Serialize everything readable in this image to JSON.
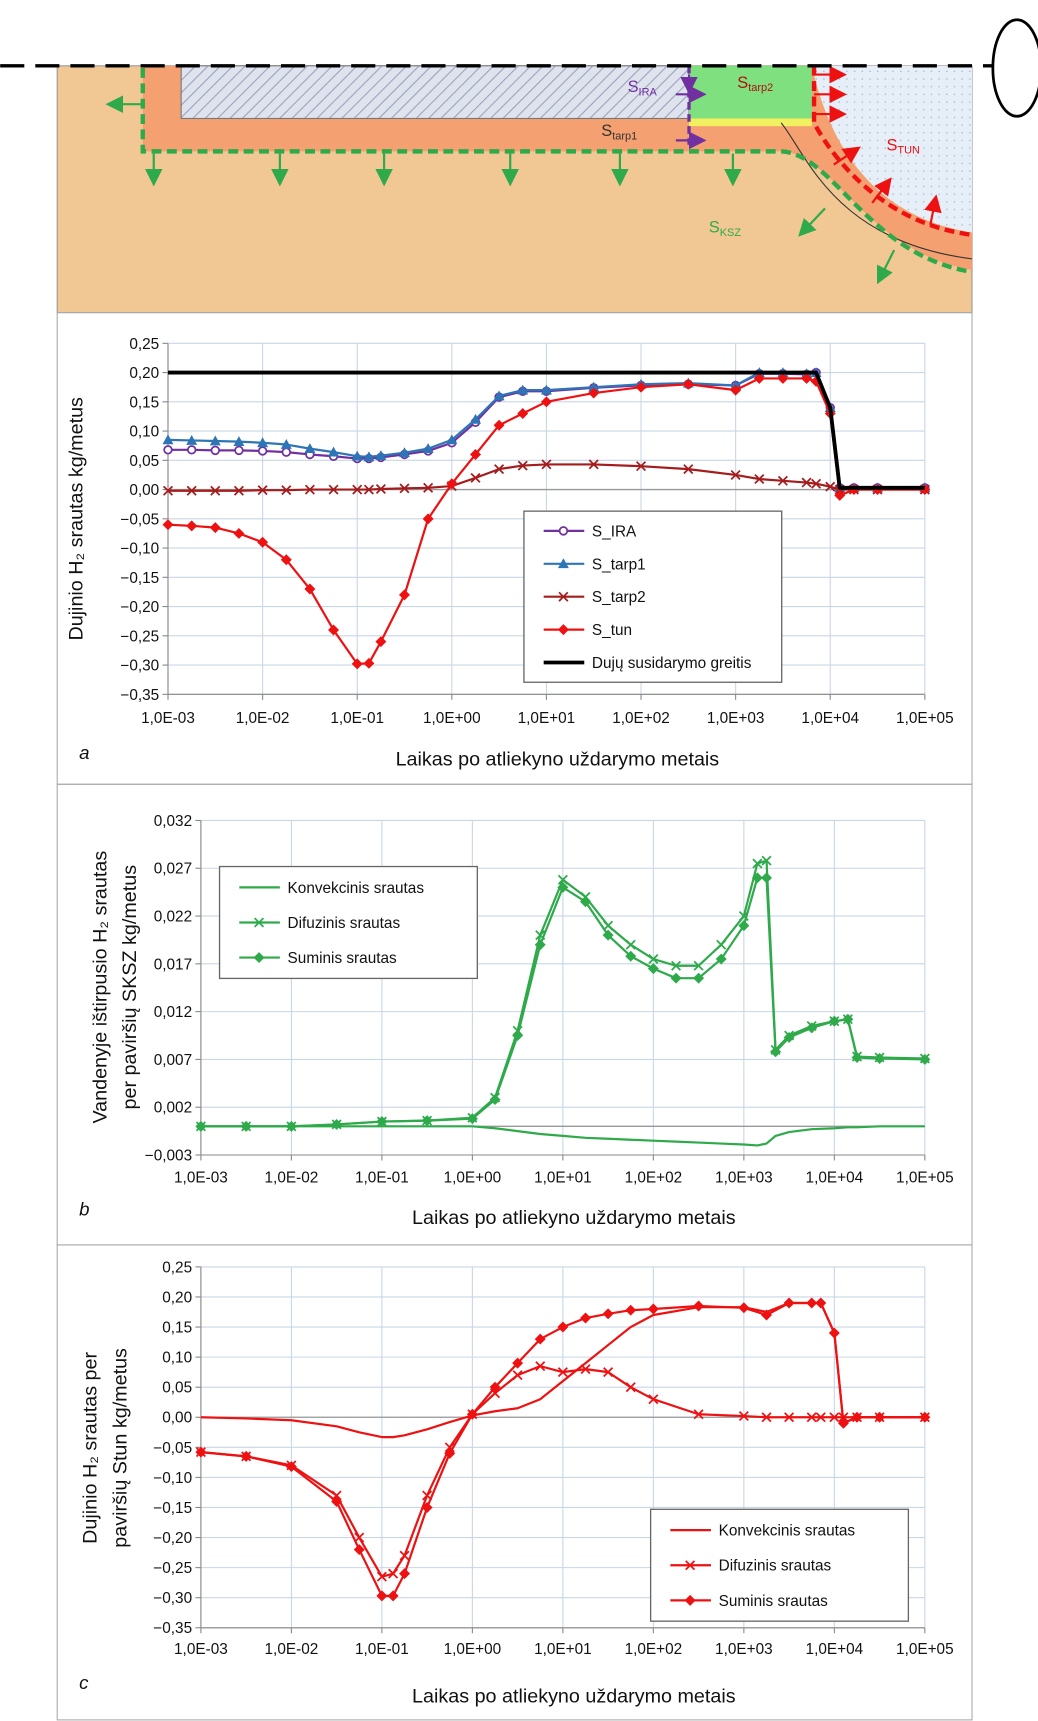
{
  "diagram": {
    "labels": [
      {
        "main": "S",
        "sub": "IRA"
      },
      {
        "main": "S",
        "sub": "tarp2"
      },
      {
        "main": "S",
        "sub": "tarp1"
      },
      {
        "main": "S",
        "sub": "TUN"
      },
      {
        "main": "S",
        "sub": "KSZ"
      }
    ]
  },
  "chart_data": [
    {
      "type": "line",
      "panel": "a",
      "ylabel": [
        "Dujinio H₂ srautas kg/metus"
      ],
      "xlabel": "Laikas po atliekyno uždarymo metais",
      "xscale": "log",
      "grid": true,
      "legend": "lower center",
      "xlim": [
        0.001,
        100000
      ],
      "ylim": [
        -0.35,
        0.25
      ],
      "xticks": [
        {
          "value": 0.001,
          "label": "1,0E-03"
        },
        {
          "value": 0.01,
          "label": "1,0E-02"
        },
        {
          "value": 0.1,
          "label": "1,0E-01"
        },
        {
          "value": 1,
          "label": "1,0E+00"
        },
        {
          "value": 10,
          "label": "1,0E+01"
        },
        {
          "value": 100,
          "label": "1,0E+02"
        },
        {
          "value": 1000,
          "label": "1,0E+03"
        },
        {
          "value": 10000,
          "label": "1,0E+04"
        },
        {
          "value": 100000,
          "label": "1,0E+05"
        }
      ],
      "yticks": [
        {
          "value": 0.25,
          "label": "0,25"
        },
        {
          "value": 0.2,
          "label": "0,20"
        },
        {
          "value": 0.15,
          "label": "0,15"
        },
        {
          "value": 0.1,
          "label": "0,10"
        },
        {
          "value": 0.05,
          "label": "0,05"
        },
        {
          "value": 0,
          "label": "0,00"
        },
        {
          "value": -0.05,
          "label": "−0,05"
        },
        {
          "value": -0.1,
          "label": "−0,10"
        },
        {
          "value": -0.15,
          "label": "−0,15"
        },
        {
          "value": -0.2,
          "label": "−0,20"
        },
        {
          "value": -0.25,
          "label": "−0,25"
        },
        {
          "value": -0.3,
          "label": "−0,30"
        },
        {
          "value": -0.35,
          "label": "−0,35"
        }
      ],
      "x": [
        0.001,
        0.00178,
        0.00316,
        0.00562,
        0.01,
        0.0178,
        0.0316,
        0.0562,
        0.1,
        0.133,
        0.178,
        0.316,
        0.562,
        1,
        1.78,
        3.16,
        5.62,
        10,
        31.6,
        100,
        316,
        1000,
        1780,
        3160,
        5620,
        7080,
        10000,
        12600,
        17800,
        31600,
        100000
      ],
      "series": [
        {
          "name": "S_IRA",
          "color": "#7030a0",
          "marker": "circle",
          "values": [
            0.068,
            0.068,
            0.067,
            0.067,
            0.066,
            0.064,
            0.06,
            0.057,
            0.053,
            0.053,
            0.055,
            0.06,
            0.066,
            0.08,
            0.115,
            0.158,
            0.168,
            0.168,
            0.174,
            0.178,
            0.18,
            0.178,
            0.198,
            0.198,
            0.197,
            0.2,
            0.14,
            0.003,
            0.003,
            0.003,
            0.003
          ]
        },
        {
          "name": "S_tarp1",
          "color": "#2e75b6",
          "marker": "triangle",
          "values": [
            0.085,
            0.084,
            0.083,
            0.082,
            0.08,
            0.077,
            0.07,
            0.064,
            0.057,
            0.056,
            0.058,
            0.063,
            0.07,
            0.085,
            0.12,
            0.16,
            0.17,
            0.17,
            0.175,
            0.18,
            0.182,
            0.178,
            0.2,
            0.2,
            0.198,
            0.2,
            0.14,
            0.003,
            0.003,
            0.003,
            0.003
          ]
        },
        {
          "name": "S_tarp2",
          "color": "#a51c1c",
          "marker": "x",
          "values": [
            -0.002,
            -0.002,
            -0.002,
            -0.002,
            -0.001,
            -0.001,
            0,
            0,
            0,
            0,
            0.001,
            0.002,
            0.003,
            0.006,
            0.02,
            0.035,
            0.041,
            0.043,
            0.043,
            0.04,
            0.035,
            0.025,
            0.018,
            0.015,
            0.012,
            0.01,
            0.005,
            0,
            0,
            0,
            0
          ]
        },
        {
          "name": "S_tun",
          "color": "#ee1111",
          "marker": "diamond",
          "values": [
            -0.06,
            -0.062,
            -0.065,
            -0.075,
            -0.09,
            -0.12,
            -0.17,
            -0.24,
            -0.298,
            -0.297,
            -0.26,
            -0.18,
            -0.05,
            0.01,
            0.06,
            0.11,
            0.13,
            0.15,
            0.165,
            0.175,
            0.18,
            0.17,
            0.19,
            0.19,
            0.19,
            0.185,
            0.13,
            -0.01,
            0,
            0,
            0
          ]
        },
        {
          "name": "Dujų susidarymo greitis",
          "color": "#000000",
          "marker": "none",
          "width": 3.5,
          "values": [
            0.2,
            0.2,
            0.2,
            0.2,
            0.2,
            0.2,
            0.2,
            0.2,
            0.2,
            0.2,
            0.2,
            0.2,
            0.2,
            0.2,
            0.2,
            0.2,
            0.2,
            0.2,
            0.2,
            0.2,
            0.2,
            0.2,
            0.2,
            0.2,
            0.2,
            0.2,
            0.14,
            0.003,
            0.003,
            0.003,
            0.003
          ]
        }
      ]
    },
    {
      "type": "line",
      "panel": "b",
      "ylabel": [
        "Vandenyje ištirpusio H₂ srautas",
        "per paviršių SKSZ kg/metus"
      ],
      "xlabel": "Laikas po atliekyno uždarymo metais",
      "xscale": "log",
      "grid": true,
      "legend": "upper left",
      "xlim": [
        0.001,
        100000
      ],
      "ylim": [
        -0.003,
        0.032
      ],
      "xticks": [
        {
          "value": 0.001,
          "label": "1,0E-03"
        },
        {
          "value": 0.01,
          "label": "1,0E-02"
        },
        {
          "value": 0.1,
          "label": "1,0E-01"
        },
        {
          "value": 1,
          "label": "1,0E+00"
        },
        {
          "value": 10,
          "label": "1,0E+01"
        },
        {
          "value": 100,
          "label": "1,0E+02"
        },
        {
          "value": 1000,
          "label": "1,0E+03"
        },
        {
          "value": 10000,
          "label": "1,0E+04"
        },
        {
          "value": 100000,
          "label": "1,0E+05"
        }
      ],
      "yticks": [
        {
          "value": 0.032,
          "label": "0,032"
        },
        {
          "value": 0.027,
          "label": "0,027"
        },
        {
          "value": 0.022,
          "label": "0,022"
        },
        {
          "value": 0.017,
          "label": "0,017"
        },
        {
          "value": 0.012,
          "label": "0,012"
        },
        {
          "value": 0.007,
          "label": "0,007"
        },
        {
          "value": 0.002,
          "label": "0,002"
        },
        {
          "value": -0.003,
          "label": "−0,003"
        }
      ],
      "x": [
        0.001,
        0.00316,
        0.01,
        0.0316,
        0.1,
        0.316,
        1,
        1.78,
        3.16,
        5.62,
        10,
        17.8,
        31.6,
        56.2,
        100,
        178,
        316,
        562,
        1000,
        1410,
        1780,
        2240,
        3160,
        5620,
        10000,
        14100,
        17800,
        31600,
        100000
      ],
      "series": [
        {
          "name": "Konvekcinis srautas",
          "color": "#2eaa4a",
          "marker": "none",
          "values": [
            0,
            0,
            0,
            0,
            0,
            0,
            0,
            -0.0002,
            -0.0005,
            -0.0008,
            -0.001,
            -0.0012,
            -0.0013,
            -0.0014,
            -0.0015,
            -0.0016,
            -0.0017,
            -0.0018,
            -0.0019,
            -0.002,
            -0.0018,
            -0.001,
            -0.0006,
            -0.0003,
            -0.0002,
            -0.0001,
            -0.0001,
            0,
            0
          ]
        },
        {
          "name": "Difuzinis srautas",
          "color": "#2eaa4a",
          "marker": "x",
          "values": [
            0,
            0,
            0,
            0.0002,
            0.0005,
            0.0006,
            0.0009,
            0.003,
            0.01,
            0.02,
            0.0258,
            0.024,
            0.021,
            0.019,
            0.0175,
            0.0168,
            0.0168,
            0.019,
            0.022,
            0.0275,
            0.0278,
            0.008,
            0.0095,
            0.0105,
            0.011,
            0.0112,
            0.0073,
            0.0072,
            0.0071
          ]
        },
        {
          "name": "Suminis srautas",
          "color": "#2eaa4a",
          "marker": "diamond",
          "values": [
            0,
            0,
            0,
            0.0002,
            0.0005,
            0.0006,
            0.0008,
            0.0028,
            0.0095,
            0.019,
            0.025,
            0.0235,
            0.02,
            0.0178,
            0.0165,
            0.0155,
            0.0155,
            0.0175,
            0.021,
            0.026,
            0.026,
            0.0078,
            0.0093,
            0.0103,
            0.011,
            0.0112,
            0.0072,
            0.0071,
            0.007
          ]
        }
      ]
    },
    {
      "type": "line",
      "panel": "c",
      "ylabel": [
        "Dujinio H₂ srautas per",
        "paviršių Stun kg/metus"
      ],
      "xlabel": "Laikas po atliekyno uždarymo metais",
      "xscale": "log",
      "grid": true,
      "legend": "lower right",
      "xlim": [
        0.001,
        100000
      ],
      "ylim": [
        -0.35,
        0.25
      ],
      "xticks": [
        {
          "value": 0.001,
          "label": "1,0E-03"
        },
        {
          "value": 0.01,
          "label": "1,0E-02"
        },
        {
          "value": 0.1,
          "label": "1,0E-01"
        },
        {
          "value": 1,
          "label": "1,0E+00"
        },
        {
          "value": 10,
          "label": "1,0E+01"
        },
        {
          "value": 100,
          "label": "1,0E+02"
        },
        {
          "value": 1000,
          "label": "1,0E+03"
        },
        {
          "value": 10000,
          "label": "1,0E+04"
        },
        {
          "value": 100000,
          "label": "1,0E+05"
        }
      ],
      "yticks": [
        {
          "value": 0.25,
          "label": "0,25"
        },
        {
          "value": 0.2,
          "label": "0,20"
        },
        {
          "value": 0.15,
          "label": "0,15"
        },
        {
          "value": 0.1,
          "label": "0,10"
        },
        {
          "value": 0.05,
          "label": "0,05"
        },
        {
          "value": 0,
          "label": "0,00"
        },
        {
          "value": -0.05,
          "label": "−0,05"
        },
        {
          "value": -0.1,
          "label": "−0,10"
        },
        {
          "value": -0.15,
          "label": "−0,15"
        },
        {
          "value": -0.2,
          "label": "−0,20"
        },
        {
          "value": -0.25,
          "label": "−0,25"
        },
        {
          "value": -0.3,
          "label": "−0,30"
        },
        {
          "value": -0.35,
          "label": "−0,35"
        }
      ],
      "x": [
        0.001,
        0.00316,
        0.01,
        0.0316,
        0.0562,
        0.1,
        0.133,
        0.178,
        0.316,
        0.562,
        1,
        1.78,
        3.16,
        5.62,
        10,
        17.8,
        31.6,
        56.2,
        100,
        316,
        1000,
        1780,
        3160,
        5620,
        7080,
        10000,
        12600,
        17800,
        31600,
        100000
      ],
      "series": [
        {
          "name": "Konvekcinis srautas",
          "color": "#ee1111",
          "marker": "none",
          "values": [
            0,
            -0.002,
            -0.005,
            -0.015,
            -0.025,
            -0.033,
            -0.033,
            -0.03,
            -0.02,
            -0.008,
            0.003,
            0.01,
            0.015,
            0.03,
            0.06,
            0.09,
            0.12,
            0.15,
            0.17,
            0.183,
            0.183,
            0.175,
            0.19,
            0.19,
            0.19,
            0.14,
            -0.01,
            0,
            0,
            0
          ]
        },
        {
          "name": "Difuzinis srautas",
          "color": "#ee1111",
          "marker": "x",
          "values": [
            -0.058,
            -0.065,
            -0.08,
            -0.13,
            -0.2,
            -0.265,
            -0.26,
            -0.23,
            -0.13,
            -0.05,
            0.005,
            0.04,
            0.07,
            0.085,
            0.075,
            0.08,
            0.075,
            0.05,
            0.03,
            0.005,
            0.002,
            0,
            0,
            0,
            0,
            0,
            0,
            0,
            0,
            0
          ]
        },
        {
          "name": "Suminis srautas",
          "color": "#ee1111",
          "marker": "diamond",
          "values": [
            -0.058,
            -0.065,
            -0.082,
            -0.14,
            -0.22,
            -0.297,
            -0.297,
            -0.26,
            -0.15,
            -0.06,
            0.005,
            0.05,
            0.09,
            0.13,
            0.15,
            0.165,
            0.172,
            0.178,
            0.18,
            0.185,
            0.182,
            0.17,
            0.19,
            0.19,
            0.19,
            0.14,
            -0.01,
            0,
            0,
            0
          ]
        }
      ]
    }
  ]
}
